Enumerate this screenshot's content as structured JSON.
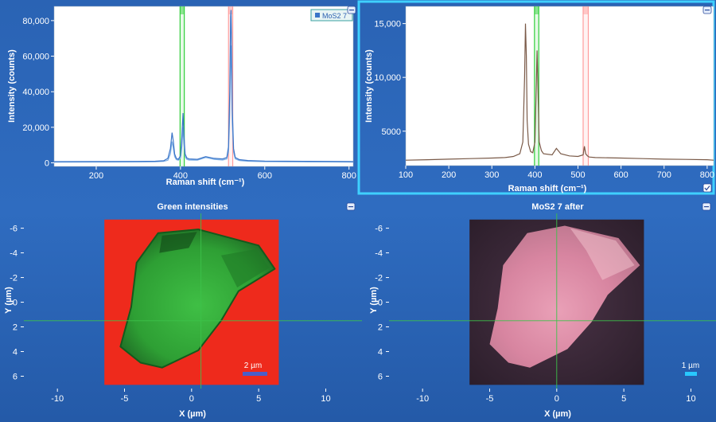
{
  "colors": {
    "background": "#2a63b4",
    "spectrum_primary": "#3a74c8",
    "spectrum_secondary": "#7fb0e6",
    "spectrum_after": "#7a5a48",
    "band_green": "#2fcf3a",
    "band_red": "#ff9c9c",
    "selection_border": "#3fd0ff",
    "map_red": "#ee2a1c",
    "map_green": "#2ea834",
    "crosshair": "#3cc24a",
    "scalebar_blue": "#4a5ec8",
    "scalebar_cyan": "#28c8ff"
  },
  "panels": {
    "tl_legend": "MoS2 7",
    "bl_scalebar": "2 µm",
    "br_scalebar": "1 µm"
  },
  "chart_data": [
    {
      "type": "line",
      "xlabel": "Raman shift (cm⁻¹)",
      "ylabel": "Intensity (counts)",
      "xlim": [
        100,
        810
      ],
      "ylim": [
        -2000,
        88000
      ],
      "xticks": [
        200,
        400,
        600,
        800
      ],
      "yticks": [
        0,
        20000,
        40000,
        60000,
        80000
      ],
      "ytick_labels": [
        "0",
        "20,000",
        "40,000",
        "60,000",
        "80,000"
      ],
      "legend": "MoS2 7",
      "legend_position": "top-right",
      "bands": [
        {
          "from": 399,
          "to": 409,
          "color": "green"
        },
        {
          "from": 514,
          "to": 524,
          "color": "red"
        }
      ],
      "series": [
        {
          "name": "MoS2 7",
          "x": [
            100,
            200,
            300,
            340,
            360,
            370,
            376,
            380,
            383,
            386,
            390,
            395,
            400,
            403,
            406,
            408,
            411,
            415,
            420,
            440,
            460,
            480,
            500,
            510,
            514,
            517,
            519,
            520,
            521,
            523,
            526,
            530,
            540,
            560,
            600,
            650,
            700,
            750,
            800,
            810
          ],
          "y": [
            700,
            750,
            800,
            900,
            1200,
            2500,
            8000,
            17000,
            12000,
            5000,
            2500,
            2000,
            4000,
            14000,
            28000,
            16000,
            5000,
            2800,
            2200,
            2000,
            3500,
            2500,
            2200,
            3000,
            9000,
            40000,
            82000,
            86000,
            70000,
            30000,
            8000,
            3000,
            1800,
            1300,
            1000,
            900,
            850,
            800,
            750,
            700
          ]
        },
        {
          "x": [
            100,
            200,
            300,
            340,
            360,
            370,
            376,
            380,
            383,
            386,
            390,
            395,
            400,
            403,
            406,
            408,
            411,
            415,
            420,
            440,
            460,
            480,
            500,
            510,
            514,
            517,
            519,
            520,
            521,
            523,
            526,
            530,
            540,
            560,
            600,
            650,
            700,
            750,
            800,
            810
          ],
          "y": [
            400,
            450,
            500,
            600,
            800,
            1500,
            5000,
            12000,
            8000,
            3500,
            1800,
            1500,
            2800,
            9000,
            20000,
            11000,
            3500,
            2000,
            1600,
            1500,
            3000,
            2000,
            1600,
            2200,
            6000,
            28000,
            60000,
            66000,
            52000,
            22000,
            6000,
            2200,
            1300,
            900,
            700,
            600,
            550,
            500,
            480,
            450
          ]
        }
      ]
    },
    {
      "type": "line",
      "xlabel": "Raman shift (cm⁻¹)",
      "ylabel": "Intensity (counts)",
      "xlim": [
        100,
        815
      ],
      "ylim": [
        1800,
        16600
      ],
      "xticks": [
        100,
        200,
        300,
        400,
        500,
        600,
        700,
        800
      ],
      "yticks": [
        5000,
        10000,
        15000
      ],
      "ytick_labels": [
        "5000",
        "10,000",
        "15,000"
      ],
      "bands": [
        {
          "from": 399,
          "to": 409,
          "color": "green"
        },
        {
          "from": 512,
          "to": 524,
          "color": "red"
        }
      ],
      "series": [
        {
          "x": [
            100,
            150,
            200,
            250,
            300,
            330,
            350,
            365,
            372,
            376,
            378,
            380,
            382,
            385,
            390,
            395,
            400,
            403,
            405,
            407,
            410,
            415,
            420,
            440,
            450,
            460,
            480,
            500,
            512,
            515,
            518,
            522,
            526,
            540,
            600,
            650,
            700,
            750,
            800,
            815
          ],
          "y": [
            2300,
            2350,
            2400,
            2450,
            2500,
            2550,
            2650,
            2900,
            4000,
            10000,
            15000,
            12000,
            6000,
            3800,
            3100,
            3000,
            4000,
            9000,
            12500,
            9000,
            4000,
            3200,
            2900,
            2800,
            3400,
            2900,
            2700,
            2650,
            2800,
            3600,
            2900,
            2700,
            2600,
            2550,
            2500,
            2450,
            2400,
            2380,
            2350,
            2300
          ]
        }
      ]
    },
    {
      "type": "heatmap",
      "title": "Green intensities",
      "xlabel": "X (µm)",
      "ylabel": "Y (µm)",
      "xlim": [
        -12.5,
        12.7
      ],
      "ylim": [
        7,
        -7.2
      ],
      "xticks": [
        -10,
        -5,
        0,
        5,
        10
      ],
      "yticks": [
        -6,
        -4,
        -2,
        0,
        2,
        4,
        6
      ],
      "extent_x": [
        -6.5,
        6.5
      ],
      "extent_y": [
        -6.7,
        6.7
      ],
      "flake_outline_um": [
        [
          -2.5,
          -5.6
        ],
        [
          0.5,
          -5.9
        ],
        [
          5,
          -4.6
        ],
        [
          6.2,
          -2.7
        ],
        [
          3.5,
          -0.9
        ],
        [
          2.2,
          1.5
        ],
        [
          0.5,
          3.9
        ],
        [
          -2.2,
          5.3
        ],
        [
          -3.8,
          4.9
        ],
        [
          -5.3,
          3.6
        ],
        [
          -4.5,
          0.4
        ],
        [
          -4.1,
          -3.2
        ]
      ],
      "crosshair": {
        "x": 0.7,
        "y": 1.5
      },
      "scalebar_um": 2
    },
    {
      "type": "heatmap",
      "title": "MoS2 7 after",
      "xlabel": "X (µm)",
      "ylabel": "Y (µm)",
      "xlim": [
        -12.5,
        12.7
      ],
      "ylim": [
        7,
        -7.2
      ],
      "xticks": [
        -10,
        -5,
        0,
        5,
        10
      ],
      "yticks": [
        -6,
        -4,
        -2,
        0,
        2,
        4,
        6
      ],
      "extent_x": [
        -6.5,
        6.5
      ],
      "extent_y": [
        -6.7,
        6.7
      ],
      "flake_outline_um": [
        [
          -2.2,
          -5.6
        ],
        [
          0.6,
          -6.2
        ],
        [
          4.6,
          -5.2
        ],
        [
          6.2,
          -3.0
        ],
        [
          3.8,
          -0.6
        ],
        [
          2.6,
          1.6
        ],
        [
          0.8,
          3.8
        ],
        [
          -2.0,
          5.3
        ],
        [
          -3.6,
          4.9
        ],
        [
          -5.0,
          3.4
        ],
        [
          -4.4,
          0.5
        ],
        [
          -4.0,
          -3.0
        ]
      ],
      "crosshair": {
        "x": 0.0,
        "y": 1.5
      },
      "scalebar_um": 1
    }
  ]
}
